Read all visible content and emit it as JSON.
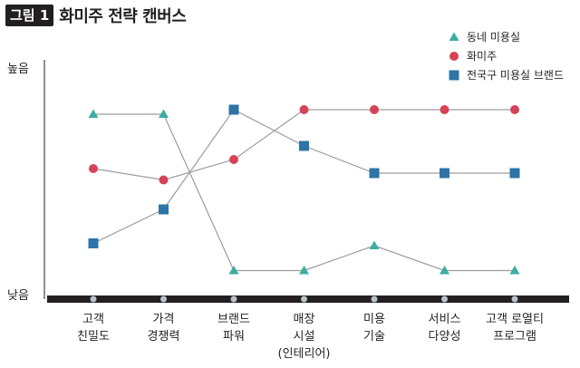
{
  "figure": {
    "badge": "그림 1",
    "title": "화미주 전략 캔버스"
  },
  "chart_data": {
    "type": "line",
    "y_axis": {
      "top_label": "높음",
      "bottom_label": "낮음",
      "range": [
        0,
        10
      ],
      "grid": false
    },
    "categories": [
      [
        "고객",
        "친밀도"
      ],
      [
        "가격",
        "경쟁력"
      ],
      [
        "브랜드",
        "파워"
      ],
      [
        "매장",
        "시설",
        "(인테리어)"
      ],
      [
        "미용",
        "기술"
      ],
      [
        "서비스",
        "다양성"
      ],
      [
        "고객 로열티",
        "프로그램"
      ]
    ],
    "series": [
      {
        "name": "동네 미용실",
        "marker": "triangle",
        "color": "#3aaea0",
        "values": [
          8.0,
          8.0,
          1.1,
          1.1,
          2.2,
          1.1,
          1.1
        ]
      },
      {
        "name": "화미주",
        "marker": "circle",
        "color": "#d64356",
        "values": [
          5.6,
          5.1,
          6.0,
          8.2,
          8.2,
          8.2,
          8.2
        ]
      },
      {
        "name": "전국구 미용실 브랜드",
        "marker": "square",
        "color": "#2e74a6",
        "values": [
          2.3,
          3.8,
          8.2,
          6.6,
          5.4,
          5.4,
          5.4
        ]
      }
    ],
    "legend_position": "top-right",
    "line_color": "#9d9d9d"
  }
}
